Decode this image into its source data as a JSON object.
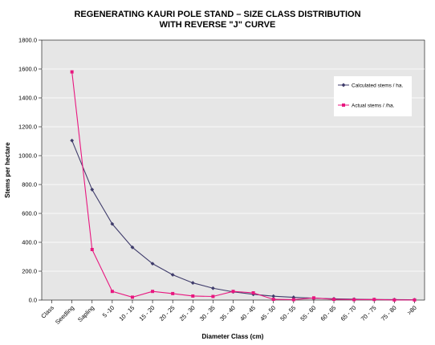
{
  "chart_data": {
    "type": "line",
    "title_lines": [
      "REGENERATING KAURI POLE STAND – SIZE CLASS DISTRIBUTION",
      "WITH REVERSE \"J\" CURVE"
    ],
    "xlabel": "Diameter Class (cm)",
    "ylabel": "Stems per hectare",
    "ylim": [
      0,
      1800
    ],
    "yticks": [
      "0.0",
      "200.0",
      "400.0",
      "600.0",
      "800.0",
      "1000.0",
      "1200.0",
      "1400.0",
      "1600.0",
      "1800.0"
    ],
    "categories": [
      "Class",
      "Seedling",
      "Sapling",
      "5 -10",
      "10 - 15",
      "15 - 20",
      "20 - 25",
      "25 - 30",
      "30 - 35",
      "35 - 40",
      "40 - 45",
      "45 - 50",
      "50 - 55",
      "55 - 60",
      "60 - 65",
      "65 - 70",
      "70 - 75",
      "75 - 80",
      ">80"
    ],
    "grid": "horizontal",
    "legend_position": "right",
    "colors": {
      "plot_bg": "#e6e6e6",
      "calculated": "#3f3c6b",
      "actual": "#e8177f"
    },
    "series": [
      {
        "name": "Calculated stems / ha.",
        "marker": "diamond",
        "values": [
          null,
          1105,
          765,
          527,
          365,
          252,
          175,
          119,
          82,
          57,
          40,
          27,
          19,
          13,
          9,
          6,
          4,
          3,
          2
        ]
      },
      {
        "name": "Actual stems / /ha.",
        "marker": "square",
        "values": [
          null,
          1580,
          350,
          60,
          20,
          60,
          45,
          28,
          25,
          60,
          50,
          5,
          3,
          15,
          5,
          3,
          4,
          1,
          1
        ]
      }
    ]
  }
}
